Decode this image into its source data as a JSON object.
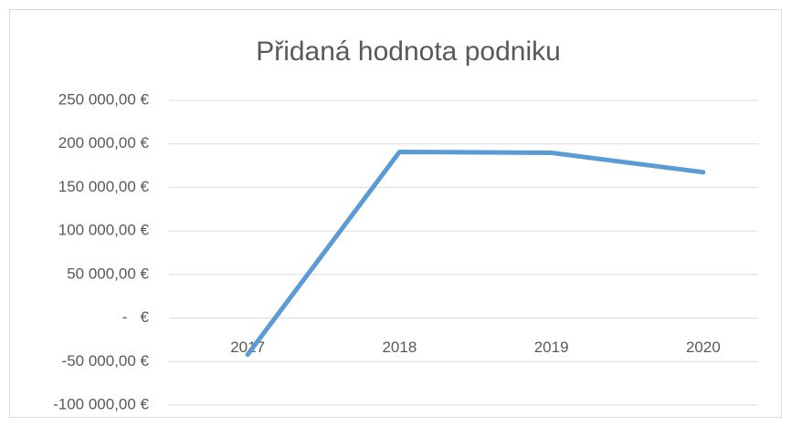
{
  "chart_data": {
    "type": "line",
    "title": "Přidaná hodnota podniku",
    "categories": [
      "2017",
      "2018",
      "2019",
      "2020"
    ],
    "series": [
      {
        "name": "Přidaná hodnota podniku",
        "color": "#5b9bd5",
        "values": [
          -42000,
          190800,
          189800,
          167500
        ]
      }
    ],
    "ylim": [
      -100000,
      250000
    ],
    "yticks": [
      {
        "value": -100000,
        "label": "-100 000,00 €"
      },
      {
        "value": -50000,
        "label": "-50 000,00 €"
      },
      {
        "value": 0,
        "label": "-   €"
      },
      {
        "value": 50000,
        "label": "50 000,00 €"
      },
      {
        "value": 100000,
        "label": "100 000,00 €"
      },
      {
        "value": 150000,
        "label": "150 000,00 €"
      },
      {
        "value": 200000,
        "label": "200 000,00 €"
      },
      {
        "value": 250000,
        "label": "250 000,00 €"
      }
    ],
    "grid": true
  }
}
